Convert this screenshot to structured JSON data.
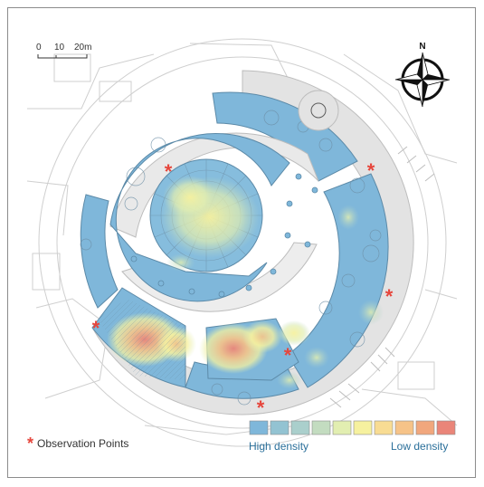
{
  "scale_bar": {
    "labels": [
      "0",
      "10",
      "20m"
    ]
  },
  "north_arrow": {
    "letter": "N",
    "icon": "north-arrow-icon"
  },
  "legend": {
    "high_label": "High density",
    "low_label": "Low density",
    "swatches": [
      "#7fb7da",
      "#93c3d2",
      "#aacfcc",
      "#c3dcc0",
      "#e2eeb1",
      "#f6f19f",
      "#f8dc93",
      "#f6c388",
      "#f1a77d",
      "#ea8579"
    ],
    "observation_label": "Observation Points",
    "observation_color": "#e6463c"
  },
  "colors": {
    "high_density": "#7fb7da",
    "plaza_gray": "#e3e3e3",
    "outline": "#5c8aa8"
  }
}
